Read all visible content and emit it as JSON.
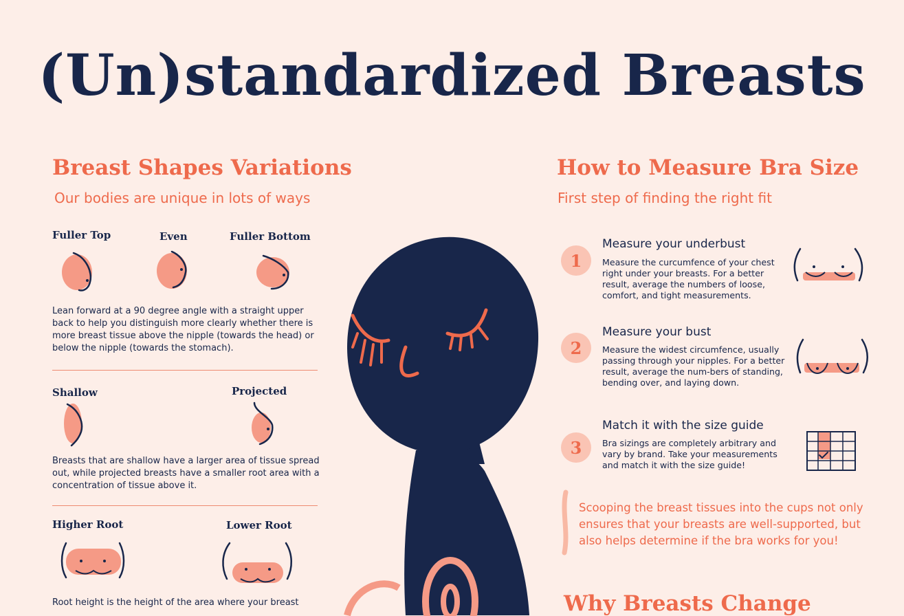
{
  "title": "(Un)standardized Breasts",
  "left": {
    "title": "Breast Shapes Variations",
    "subtitle": "Our bodies are unique in lots of ways",
    "labels": {
      "fuller_top": "Fuller Top",
      "even": "Even",
      "fuller_bottom": "Fuller Bottom",
      "shallow": "Shallow",
      "projected": "Projected",
      "higher_root": "Higher Root",
      "lower_root": "Lower Root"
    },
    "para1": "Lean forward at a 90 degree angle with a straight upper back to help you distinguish more clearly whether there is more breast tissue above the nipple (towards the head) or below the nipple (towards the stomach).",
    "para2": "Breasts that are shallow have a larger area of tissue spread out, while projected breasts have a smaller root area with a concentration of tissue above it.",
    "para3": "Root height is the height of the area where your breast"
  },
  "right": {
    "title": "How to Measure Bra Size",
    "subtitle": "First step of finding the right fit",
    "steps": [
      {
        "num": "1",
        "title": "Measure your underbust",
        "text": "Measure the curcumfence of your chest right under your breasts. For a better result, average the numbers of loose, comfort, and tight measurements."
      },
      {
        "num": "2",
        "title": "Measure your bust",
        "text": "Measure the widest circumfence, usually passing through your nipples. For a better result, average the num-bers of standing, bending over, and laying down."
      },
      {
        "num": "3",
        "title": "Match it with the size guide",
        "text": "Bra sizings are completely arbitrary and vary by brand. Take your measurements and match it with the size guide!"
      }
    ],
    "quote": "Scooping the breast tissues into the cups not only ensures that your breasts are well-supported, but also helps determine if the bra works for you!",
    "next_title": "Why Breasts Change"
  },
  "colors": {
    "background": "#fdeee8",
    "navy": "#18264a",
    "coral": "#ee6a4c",
    "pink": "#f59a86",
    "light_pink": "#fac4b4"
  }
}
